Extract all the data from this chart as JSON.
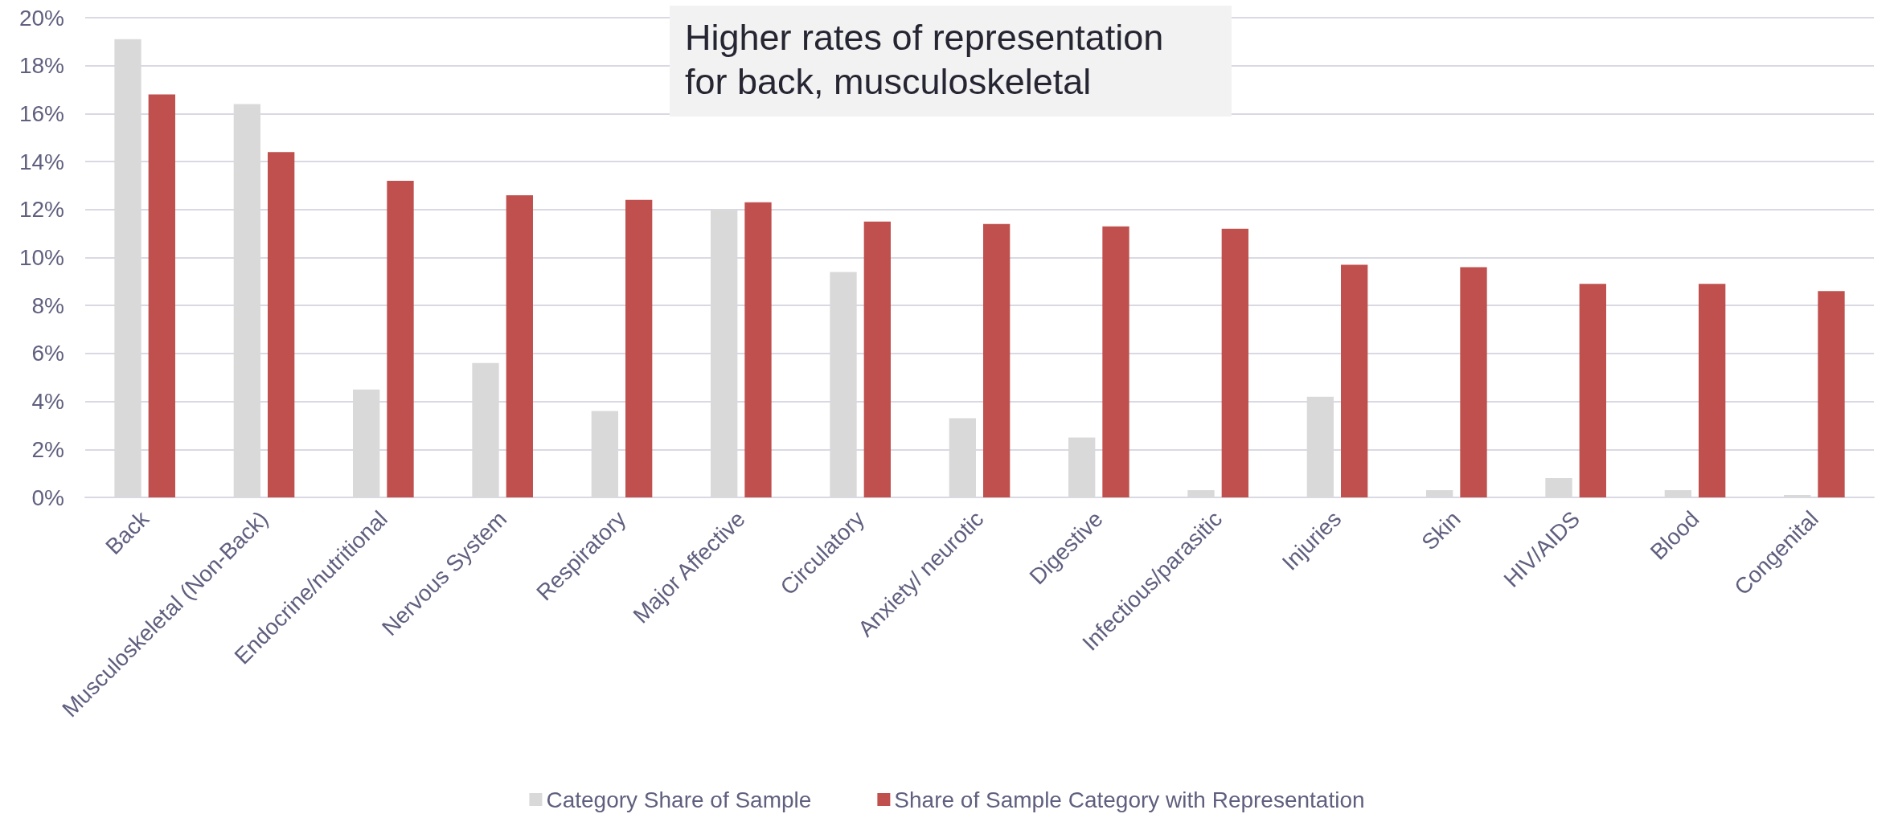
{
  "chart_data": {
    "type": "bar",
    "categories": [
      "Back",
      "Musculoskeletal (Non-Back)",
      "Endocrine/nutritional",
      "Nervous System",
      "Respiratory",
      "Major Affective",
      "Circulatory",
      "Anxiety/ neurotic",
      "Digestive",
      "Infectious/parasitic",
      "Injuries",
      "Skin",
      "HIV/AIDS",
      "Blood",
      "Congenital"
    ],
    "series": [
      {
        "name": "Category Share of Sample",
        "color": "#d9d9d9",
        "values": [
          19.1,
          16.4,
          4.5,
          5.6,
          3.6,
          12.0,
          9.4,
          3.3,
          2.5,
          0.3,
          4.2,
          0.3,
          0.8,
          0.3,
          0.1
        ]
      },
      {
        "name": "Share of Sample Category with Representation",
        "color": "#c0504d",
        "values": [
          16.8,
          14.4,
          13.2,
          12.6,
          12.4,
          12.3,
          11.5,
          11.4,
          11.3,
          11.2,
          9.7,
          9.6,
          8.9,
          8.9,
          8.6
        ]
      }
    ],
    "ylim": [
      0,
      20
    ],
    "yticks": [
      {
        "value": 0,
        "label": "0%"
      },
      {
        "value": 2,
        "label": "2%"
      },
      {
        "value": 4,
        "label": "4%"
      },
      {
        "value": 6,
        "label": "6%"
      },
      {
        "value": 8,
        "label": "8%"
      },
      {
        "value": 10,
        "label": "10%"
      },
      {
        "value": 12,
        "label": "12%"
      },
      {
        "value": 14,
        "label": "14%"
      },
      {
        "value": 16,
        "label": "16%"
      },
      {
        "value": 18,
        "label": "18%"
      },
      {
        "value": 20,
        "label": "20%"
      }
    ],
    "grid": "y",
    "legend": "bottom",
    "annotations": [
      "Higher rates of representation for back, musculoskeletal"
    ]
  }
}
